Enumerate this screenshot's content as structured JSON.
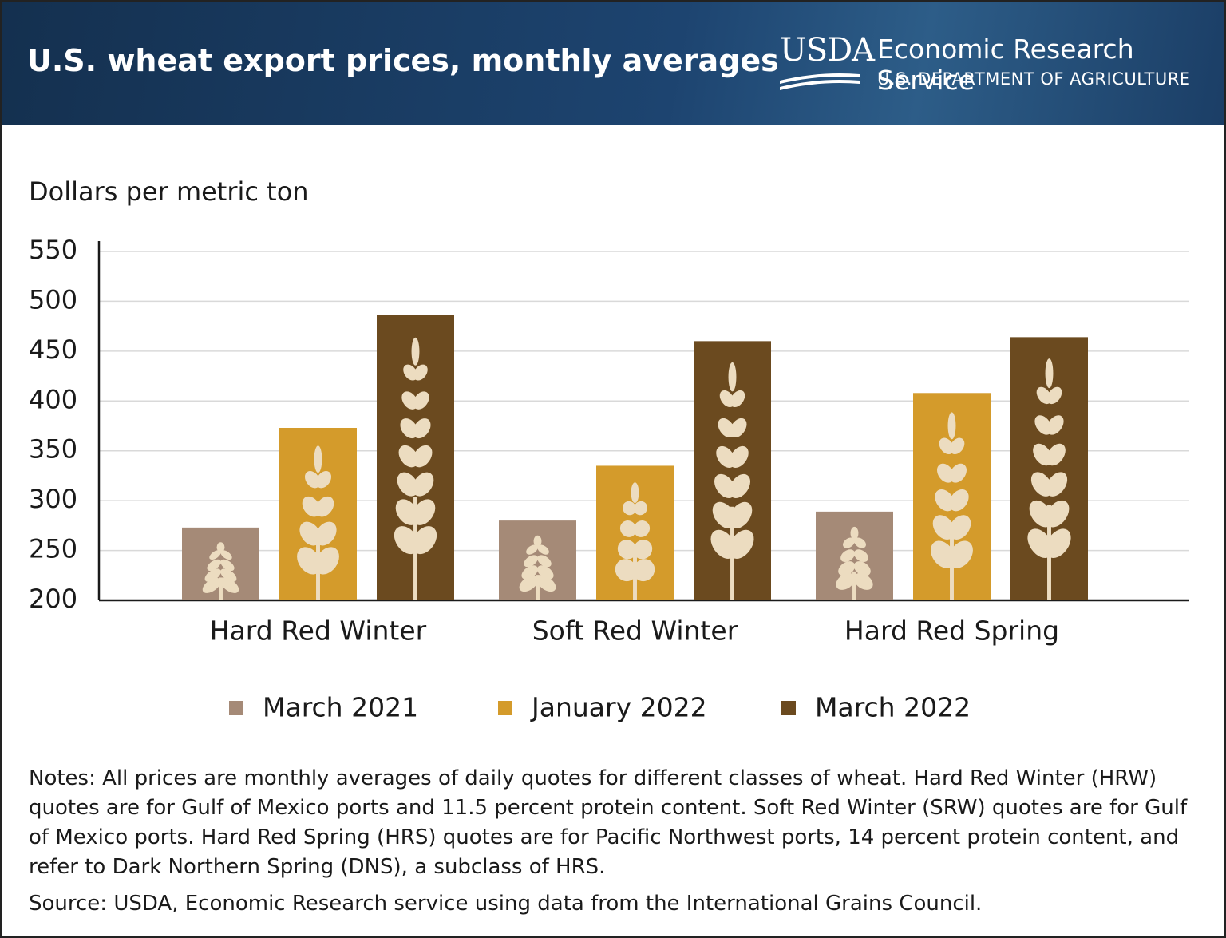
{
  "header": {
    "title": "U.S. wheat export prices, monthly averages",
    "logo": "USDA",
    "agency": "Economic Research Service",
    "department": "U.S. DEPARTMENT OF AGRICULTURE"
  },
  "chart_data": {
    "type": "bar",
    "y_label": "Dollars per metric ton",
    "categories": [
      "Hard Red Winter",
      "Soft Red Winter",
      "Hard Red Spring"
    ],
    "series": [
      {
        "name": "March 2021",
        "color": "#a58a77",
        "values": [
          273,
          280,
          289
        ]
      },
      {
        "name": "January 2022",
        "color": "#d49b2b",
        "values": [
          373,
          335,
          408
        ]
      },
      {
        "name": "March 2022",
        "color": "#6b4a1f",
        "values": [
          486,
          460,
          464
        ]
      }
    ],
    "ylim": [
      200,
      550
    ],
    "yticks": [
      200,
      250,
      300,
      350,
      400,
      450,
      500,
      550
    ],
    "grid": true
  },
  "notes": "Notes: All prices are monthly averages of daily quotes for different classes of wheat. Hard Red Winter (HRW) quotes are for Gulf of Mexico ports and 11.5 percent protein content. Soft Red Winter (SRW) quotes are for Gulf of Mexico ports. Hard Red Spring (HRS) quotes are for Pacific Northwest ports, 14 percent protein content, and refer to Dark Northern Spring (DNS), a subclass of HRS.",
  "source": "Source: USDA, Economic Research service using data from the International Grains Council."
}
